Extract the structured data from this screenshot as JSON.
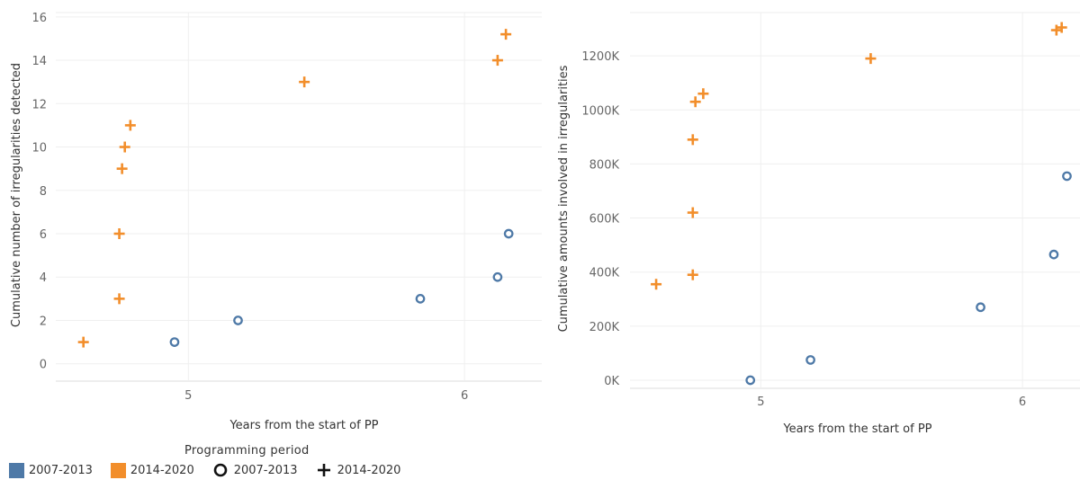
{
  "chart_data": [
    {
      "type": "scatter",
      "xlabel": "Years from the start of PP",
      "ylabel": "Cumulative number of irregularities detected",
      "xlim": [
        4.52,
        6.28
      ],
      "ylim": [
        -0.8,
        16.2
      ],
      "xticks": [
        "5",
        "6"
      ],
      "yticks": [
        "0",
        "2",
        "4",
        "6",
        "8",
        "10",
        "12",
        "14",
        "16"
      ],
      "series": [
        {
          "name": "2007-2013",
          "marker": "circle",
          "color": "#4e79a7",
          "points": [
            {
              "x": 4.95,
              "y": 1
            },
            {
              "x": 5.18,
              "y": 2
            },
            {
              "x": 5.84,
              "y": 3
            },
            {
              "x": 6.12,
              "y": 4
            },
            {
              "x": 6.16,
              "y": 6
            }
          ]
        },
        {
          "name": "2014-2020",
          "marker": "plus",
          "color": "#f28e2b",
          "points": [
            {
              "x": 4.62,
              "y": 1
            },
            {
              "x": 4.75,
              "y": 3
            },
            {
              "x": 4.75,
              "y": 6
            },
            {
              "x": 4.76,
              "y": 9
            },
            {
              "x": 4.77,
              "y": 10
            },
            {
              "x": 4.79,
              "y": 11
            },
            {
              "x": 5.42,
              "y": 13
            },
            {
              "x": 6.12,
              "y": 14
            },
            {
              "x": 6.15,
              "y": 15.2
            }
          ]
        }
      ]
    },
    {
      "type": "scatter",
      "xlabel": "Years from the start of PP",
      "ylabel": "Cumulative amounts involved in irregularities",
      "xlim": [
        4.5,
        6.22
      ],
      "ylim": [
        -30000,
        1360000
      ],
      "xticks": [
        "5",
        "6"
      ],
      "yticks": [
        "0K",
        "200K",
        "400K",
        "600K",
        "800K",
        "1000K",
        "1200K"
      ],
      "series": [
        {
          "name": "2007-2013",
          "marker": "circle",
          "color": "#4e79a7",
          "points": [
            {
              "x": 4.96,
              "y": 0
            },
            {
              "x": 5.19,
              "y": 75000
            },
            {
              "x": 5.84,
              "y": 270000
            },
            {
              "x": 6.12,
              "y": 465000
            },
            {
              "x": 6.17,
              "y": 755000
            }
          ]
        },
        {
          "name": "2014-2020",
          "marker": "plus",
          "color": "#f28e2b",
          "points": [
            {
              "x": 4.6,
              "y": 355000
            },
            {
              "x": 4.74,
              "y": 390000
            },
            {
              "x": 4.74,
              "y": 620000
            },
            {
              "x": 4.74,
              "y": 890000
            },
            {
              "x": 4.75,
              "y": 1030000
            },
            {
              "x": 4.78,
              "y": 1060000
            },
            {
              "x": 5.42,
              "y": 1190000
            },
            {
              "x": 6.13,
              "y": 1295000
            },
            {
              "x": 6.15,
              "y": 1305000
            }
          ]
        }
      ]
    }
  ],
  "legend": {
    "title": "Programming  period",
    "color_items": [
      {
        "label": "2007-2013",
        "color": "#4e79a7"
      },
      {
        "label": "2014-2020",
        "color": "#f28e2b"
      }
    ],
    "shape_items": [
      {
        "label": "2007-2013",
        "shape": "circle-icon"
      },
      {
        "label": "2014-2020",
        "shape": "plus-icon"
      }
    ]
  }
}
